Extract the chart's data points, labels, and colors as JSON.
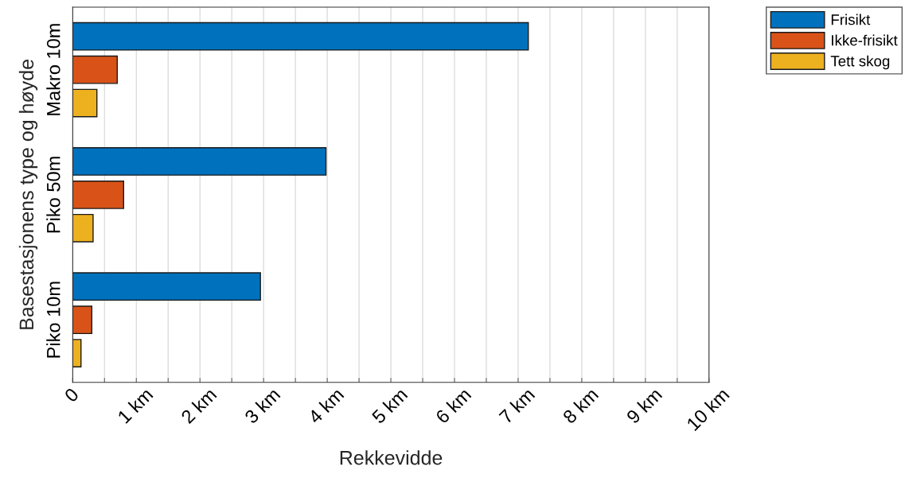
{
  "chart_data": {
    "type": "bar",
    "orientation": "horizontal",
    "xlabel": "Rekkevidde",
    "ylabel": "Basestasjonens type og høyde",
    "categories": [
      "Makro 10m",
      "Piko 50m",
      "Piko 10m"
    ],
    "series": [
      {
        "name": "Frisikt",
        "color": "#0072bd",
        "values": [
          7.16,
          3.98,
          2.95
        ]
      },
      {
        "name": "Ikke-frisikt",
        "color": "#d95319",
        "values": [
          0.7,
          0.8,
          0.3
        ]
      },
      {
        "name": "Tett skog",
        "color": "#edb120",
        "values": [
          0.38,
          0.32,
          0.13
        ]
      }
    ],
    "xlim": [
      0,
      10
    ],
    "xticks": [
      {
        "value": 0,
        "label": "0"
      },
      {
        "value": 0.5,
        "label": null
      },
      {
        "value": 1,
        "label": "1 km"
      },
      {
        "value": 1.5,
        "label": null
      },
      {
        "value": 2,
        "label": "2 km"
      },
      {
        "value": 2.5,
        "label": null
      },
      {
        "value": 3,
        "label": "3 km"
      },
      {
        "value": 3.5,
        "label": null
      },
      {
        "value": 4,
        "label": "4 km"
      },
      {
        "value": 4.5,
        "label": null
      },
      {
        "value": 5,
        "label": "5 km"
      },
      {
        "value": 5.5,
        "label": null
      },
      {
        "value": 6,
        "label": "6 km"
      },
      {
        "value": 6.5,
        "label": null
      },
      {
        "value": 7,
        "label": "7 km"
      },
      {
        "value": 7.5,
        "label": null
      },
      {
        "value": 8,
        "label": "8 km"
      },
      {
        "value": 8.5,
        "label": null
      },
      {
        "value": 9,
        "label": "9 km"
      },
      {
        "value": 9.5,
        "label": null
      },
      {
        "value": 10,
        "label": "10 km"
      }
    ],
    "grid": "x",
    "legend": "top right"
  }
}
